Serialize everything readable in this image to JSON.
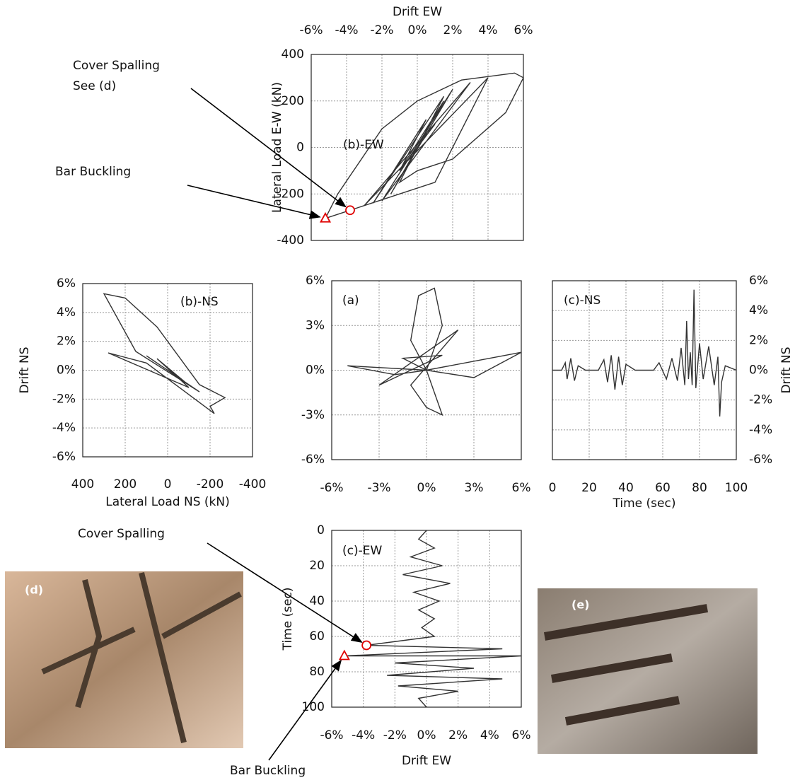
{
  "chart_data": [
    {
      "type": "line",
      "title": "(b)-EW",
      "xlabel": "Drift EW",
      "ylabel": "Lateral Load E-W (kN)",
      "xaxis": "top",
      "yaxis": "left",
      "grid": true,
      "xlim": [
        -6,
        6
      ],
      "xticks": [
        {
          "value": -6,
          "label": "-6%"
        },
        {
          "value": -4,
          "label": "-4%"
        },
        {
          "value": -2,
          "label": "-2%"
        },
        {
          "value": 0,
          "label": "0%"
        },
        {
          "value": 2,
          "label": "2%"
        },
        {
          "value": 4,
          "label": "4%"
        },
        {
          "value": 6,
          "label": "6%"
        }
      ],
      "ylim": [
        -400,
        400
      ],
      "yticks": [
        -400,
        -200,
        0,
        200,
        400
      ],
      "series": [
        {
          "color": "#333333",
          "x": [
            0,
            1,
            -1,
            1.5,
            -1.5,
            2,
            -2,
            3,
            -3,
            4,
            1,
            -3.8,
            -5.2,
            -4.5,
            -2,
            0,
            2.5,
            5.5,
            6,
            5,
            2,
            0,
            -1,
            1.5,
            -2.5,
            0.5,
            -1
          ],
          "y": [
            0,
            100,
            -100,
            200,
            -200,
            250,
            -230,
            280,
            -250,
            300,
            -150,
            -270,
            -305,
            -200,
            80,
            200,
            290,
            320,
            300,
            150,
            -50,
            -100,
            -150,
            220,
            -240,
            120,
            -100
          ]
        }
      ],
      "markers": [
        {
          "x": -3.8,
          "y": -270,
          "shape": "circle",
          "color": "#e00000"
        },
        {
          "x": -5.2,
          "y": -305,
          "shape": "triangle",
          "color": "#e00000"
        }
      ],
      "annotations": [
        {
          "text": [
            "Cover Spalling",
            "See (d)"
          ],
          "x": -3.8,
          "y": -270
        },
        {
          "text": [
            "Bar Buckling"
          ],
          "x": -5.2,
          "y": -305
        }
      ]
    },
    {
      "type": "line",
      "title": "(b)-NS",
      "xlabel": "Lateral Load NS (kN)",
      "ylabel": "Drift NS",
      "xaxis": "bottom",
      "yaxis": "left",
      "grid": true,
      "xlim": [
        400,
        -400
      ],
      "xticks": [
        400,
        200,
        0,
        -200,
        -400
      ],
      "ylim": [
        -6,
        6
      ],
      "yticks": [
        {
          "value": -6,
          "label": "-6%"
        },
        {
          "value": -4,
          "label": "-4%"
        },
        {
          "value": -2,
          "label": "-2%"
        },
        {
          "value": 0,
          "label": "0%"
        },
        {
          "value": 2,
          "label": "2%"
        },
        {
          "value": 4,
          "label": "4%"
        },
        {
          "value": 6,
          "label": "6%"
        }
      ],
      "series": [
        {
          "color": "#333333",
          "x": [
            0,
            -100,
            100,
            -150,
            150,
            300,
            200,
            50,
            -150,
            -270,
            -200,
            -220,
            100,
            280,
            -100,
            50,
            -80,
            0
          ],
          "y": [
            0,
            -1,
            1,
            -1.5,
            1.3,
            5.3,
            5,
            3,
            -1,
            -1.9,
            -2.5,
            -3,
            0.5,
            1.2,
            -1.2,
            0.8,
            -0.8,
            0
          ]
        }
      ]
    },
    {
      "type": "line",
      "title": "(a)",
      "xaxis": "bottom",
      "yaxis": "left",
      "grid": true,
      "xlim": [
        -6,
        6
      ],
      "xticks": [
        {
          "value": -6,
          "label": "-6%"
        },
        {
          "value": -3,
          "label": "-3%"
        },
        {
          "value": 0,
          "label": "0%"
        },
        {
          "value": 3,
          "label": "3%"
        },
        {
          "value": 6,
          "label": "6%"
        }
      ],
      "ylim": [
        -6,
        6
      ],
      "yticks": [
        {
          "value": -6,
          "label": "-6%"
        },
        {
          "value": -3,
          "label": "-3%"
        },
        {
          "value": 0,
          "label": "0%"
        },
        {
          "value": 3,
          "label": "3%"
        },
        {
          "value": 6,
          "label": "6%"
        }
      ],
      "series": [
        {
          "color": "#333333",
          "x": [
            0,
            -1,
            -0.5,
            0.5,
            1,
            0,
            5,
            6,
            3,
            0,
            -5,
            -2,
            0,
            1,
            0,
            -1,
            2,
            -3,
            1,
            -1.5,
            0
          ],
          "y": [
            0,
            2,
            5,
            5.5,
            3,
            0,
            1,
            1.2,
            -0.5,
            0,
            0.3,
            -0.3,
            0,
            -3,
            -2.5,
            -1,
            2.7,
            -1,
            1,
            0.8,
            0
          ]
        }
      ]
    },
    {
      "type": "line",
      "title": "(c)-NS",
      "xlabel": "Time (sec)",
      "ylabel": "Drift NS",
      "xaxis": "bottom",
      "yaxis": "right",
      "grid": true,
      "xlim": [
        0,
        100
      ],
      "xticks": [
        0,
        20,
        40,
        60,
        80,
        100
      ],
      "ylim": [
        -6,
        6
      ],
      "yticks": [
        {
          "value": -6,
          "label": "-6%"
        },
        {
          "value": -4,
          "label": "-4%"
        },
        {
          "value": -2,
          "label": "-2%"
        },
        {
          "value": 0,
          "label": "0%"
        },
        {
          "value": 2,
          "label": "2%"
        },
        {
          "value": 4,
          "label": "4%"
        },
        {
          "value": 6,
          "label": "6%"
        }
      ],
      "series": [
        {
          "color": "#333333",
          "x": [
            0,
            5,
            7,
            8,
            10,
            12,
            14,
            18,
            25,
            28,
            30,
            32,
            34,
            36,
            38,
            40,
            45,
            55,
            58,
            62,
            65,
            68,
            70,
            72,
            73,
            74,
            75,
            76,
            77,
            78,
            80,
            82,
            85,
            88,
            90,
            91,
            92,
            94,
            100
          ],
          "y": [
            0,
            0,
            0.5,
            -0.6,
            0.8,
            -0.7,
            0.3,
            0,
            0,
            0.7,
            -0.8,
            1,
            -1.3,
            0.9,
            -1,
            0.4,
            0,
            0,
            0.5,
            -0.6,
            0.8,
            -0.7,
            1.5,
            -1,
            3.3,
            -0.6,
            1.2,
            -1,
            5.4,
            -1.2,
            1.8,
            -0.6,
            1.6,
            -1,
            0.9,
            -3.1,
            -0.8,
            0.3,
            0
          ]
        }
      ]
    },
    {
      "type": "line",
      "title": "(c)-EW",
      "xlabel": "Drift EW",
      "ylabel": "Time (sec)",
      "xaxis": "bottom",
      "yaxis": "left",
      "grid": true,
      "xlim": [
        -6,
        6
      ],
      "xticks": [
        {
          "value": -6,
          "label": "-6%"
        },
        {
          "value": -4,
          "label": "-4%"
        },
        {
          "value": -2,
          "label": "-2%"
        },
        {
          "value": 0,
          "label": "0%"
        },
        {
          "value": 2,
          "label": "2%"
        },
        {
          "value": 4,
          "label": "4%"
        },
        {
          "value": 6,
          "label": "6%"
        }
      ],
      "ylim": [
        100,
        0
      ],
      "yticks": [
        0,
        20,
        40,
        60,
        80,
        100
      ],
      "series": [
        {
          "color": "#333333",
          "x": [
            0,
            -0.5,
            0.5,
            -1,
            1,
            -1.5,
            1.5,
            -0.8,
            0.8,
            -0.5,
            0.5,
            -0.3,
            0.5,
            -3.8,
            4.8,
            -5.2,
            6,
            -2,
            3,
            -2.5,
            4.8,
            -1.8,
            2,
            -0.5,
            0
          ],
          "y": [
            0,
            5,
            10,
            15,
            20,
            25,
            30,
            35,
            40,
            45,
            50,
            55,
            60,
            65,
            67,
            71,
            71,
            75,
            78,
            82,
            84,
            88,
            91,
            95,
            100
          ]
        }
      ],
      "markers": [
        {
          "x": -3.8,
          "y": 65,
          "shape": "circle",
          "color": "#e00000"
        },
        {
          "x": -5.2,
          "y": 71,
          "shape": "triangle",
          "color": "#e00000"
        }
      ],
      "annotations": [
        {
          "text": [
            "Cover Spalling"
          ],
          "x": -3.8,
          "y": 65
        },
        {
          "text": [
            "Bar Buckling"
          ],
          "x": -5.2,
          "y": 71
        }
      ]
    }
  ],
  "photos": [
    {
      "label": "(d)"
    },
    {
      "label": "(e)"
    }
  ]
}
